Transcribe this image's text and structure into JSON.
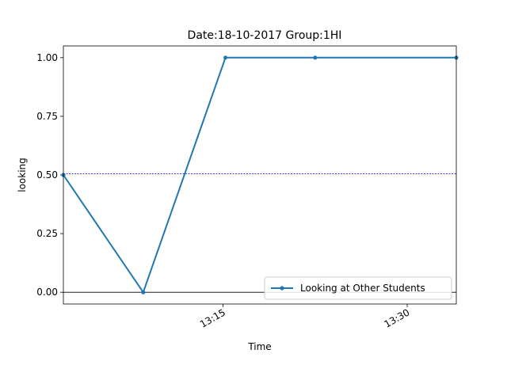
{
  "chart_data": {
    "type": "line",
    "title": "Date:18-10-2017  Group:1HI",
    "xlabel": "Time",
    "ylabel": "looking",
    "x_ticks": [
      "13:15",
      "13:30"
    ],
    "y_ticks": [
      "0.00",
      "0.25",
      "0.50",
      "0.75",
      "1.00"
    ],
    "ylim": [
      -0.05,
      1.05
    ],
    "xlim": [
      "13:02",
      "13:34"
    ],
    "grid": false,
    "legend_position": "lower right",
    "series": [
      {
        "name": "Looking at Other Students",
        "color": "#1f77b4",
        "x": [
          "13:02",
          "13:08.5",
          "13:15.2",
          "13:22.5",
          "13:34"
        ],
        "values": [
          0.5,
          0.0,
          1.0,
          1.0,
          1.0
        ]
      }
    ],
    "reference_lines": [
      {
        "y": 0.505,
        "color": "#0000cc",
        "style": "dashed"
      },
      {
        "y": 0.0,
        "color": "#000000",
        "style": "solid"
      }
    ]
  }
}
